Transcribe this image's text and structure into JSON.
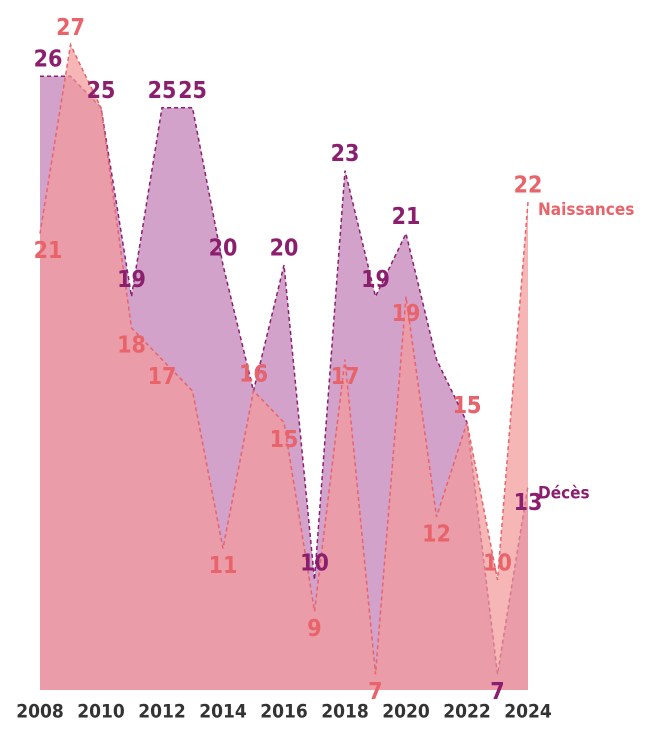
{
  "chart_data": {
    "type": "area",
    "x": [
      2008,
      2009,
      2010,
      2011,
      2012,
      2013,
      2014,
      2015,
      2016,
      2017,
      2018,
      2019,
      2020,
      2021,
      2022,
      2023,
      2024
    ],
    "xticks": [
      2008,
      2010,
      2012,
      2014,
      2016,
      2018,
      2020,
      2022,
      2024
    ],
    "ylim": [
      6.5,
      27.5
    ],
    "series": [
      {
        "name": "Décès",
        "color": "#8b1f6e",
        "fill": "#d3a2cb",
        "values": [
          26,
          26,
          25,
          19,
          25,
          25,
          20,
          16,
          20,
          10,
          23,
          19,
          21,
          17,
          15,
          7,
          13
        ],
        "value_labels": [
          "26",
          null,
          "25",
          "19",
          "25",
          "25",
          "20",
          "16",
          "20",
          "10",
          "23",
          "19",
          "21",
          null,
          "15",
          "7",
          "13"
        ]
      },
      {
        "name": "Naissances",
        "color": "#e8636a",
        "fill": "#f29a9a",
        "values": [
          21,
          27,
          25,
          18,
          17,
          16,
          11,
          16,
          15,
          9,
          17,
          7,
          19,
          12,
          15,
          10,
          22
        ],
        "value_labels": [
          "21",
          "27",
          null,
          "18",
          "17",
          null,
          "11",
          "16",
          "15",
          "9",
          "17",
          "7",
          "19",
          "12",
          "15",
          "10",
          "22"
        ]
      }
    ]
  }
}
